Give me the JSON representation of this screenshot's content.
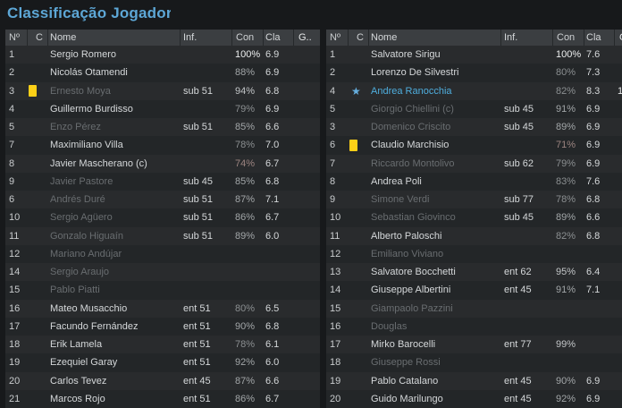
{
  "title": "Classificação Jogadores",
  "columns": [
    "Nº",
    "C",
    "Nome",
    "Inf.",
    "Con",
    "Cla",
    "G.."
  ],
  "colors": {
    "accent": "#4faede",
    "card_yellow": "#fdd017",
    "star_blue": "#66aede",
    "title_blue": "#5da7d6"
  },
  "tables": {
    "left": {
      "rows": [
        {
          "num": "1",
          "icon": "",
          "name": "Sergio Romero",
          "dimmed": false,
          "inf": "",
          "con": "100%",
          "cla": "6.9",
          "g": ""
        },
        {
          "num": "2",
          "icon": "",
          "name": "Nicolás Otamendi",
          "dimmed": false,
          "inf": "",
          "con": "88%",
          "cla": "6.9",
          "g": ""
        },
        {
          "num": "3",
          "icon": "yellow-card",
          "name": "Ernesto Moya",
          "dimmed": true,
          "inf": "sub 51",
          "con": "94%",
          "cla": "6.8",
          "g": ""
        },
        {
          "num": "4",
          "icon": "",
          "name": "Guillermo Burdisso",
          "dimmed": false,
          "inf": "",
          "con": "79%",
          "cla": "6.9",
          "g": ""
        },
        {
          "num": "5",
          "icon": "",
          "name": "Enzo Pérez",
          "dimmed": true,
          "inf": "sub 51",
          "con": "85%",
          "cla": "6.6",
          "g": ""
        },
        {
          "num": "7",
          "icon": "",
          "name": "Maximiliano Villa",
          "dimmed": false,
          "inf": "",
          "con": "78%",
          "cla": "7.0",
          "g": ""
        },
        {
          "num": "8",
          "icon": "",
          "name": "Javier Mascherano (c)",
          "dimmed": false,
          "inf": "",
          "con": "74%",
          "cla": "6.7",
          "g": ""
        },
        {
          "num": "9",
          "icon": "",
          "name": "Javier Pastore",
          "dimmed": true,
          "inf": "sub 45",
          "con": "85%",
          "cla": "6.8",
          "g": ""
        },
        {
          "num": "6",
          "icon": "",
          "name": "Andrés Duré",
          "dimmed": true,
          "inf": "sub 51",
          "con": "87%",
          "cla": "7.1",
          "g": ""
        },
        {
          "num": "10",
          "icon": "",
          "name": "Sergio Agüero",
          "dimmed": true,
          "inf": "sub 51",
          "con": "86%",
          "cla": "6.7",
          "g": ""
        },
        {
          "num": "11",
          "icon": "",
          "name": "Gonzalo Higuaín",
          "dimmed": true,
          "inf": "sub 51",
          "con": "89%",
          "cla": "6.0",
          "g": ""
        },
        {
          "num": "12",
          "icon": "",
          "name": "Mariano Andújar",
          "dimmed": true,
          "inf": "",
          "con": "",
          "cla": "",
          "g": ""
        },
        {
          "num": "14",
          "icon": "",
          "name": "Sergio Araujo",
          "dimmed": true,
          "inf": "",
          "con": "",
          "cla": "",
          "g": ""
        },
        {
          "num": "15",
          "icon": "",
          "name": "Pablo Piatti",
          "dimmed": true,
          "inf": "",
          "con": "",
          "cla": "",
          "g": ""
        },
        {
          "num": "16",
          "icon": "",
          "name": "Mateo Musacchio",
          "dimmed": false,
          "inf": "ent 51",
          "con": "80%",
          "cla": "6.5",
          "g": ""
        },
        {
          "num": "17",
          "icon": "",
          "name": "Facundo Fernández",
          "dimmed": false,
          "inf": "ent 51",
          "con": "90%",
          "cla": "6.8",
          "g": ""
        },
        {
          "num": "18",
          "icon": "",
          "name": "Erik Lamela",
          "dimmed": false,
          "inf": "ent 51",
          "con": "78%",
          "cla": "6.1",
          "g": ""
        },
        {
          "num": "19",
          "icon": "",
          "name": "Ezequiel Garay",
          "dimmed": false,
          "inf": "ent 51",
          "con": "92%",
          "cla": "6.0",
          "g": ""
        },
        {
          "num": "20",
          "icon": "",
          "name": "Carlos Tevez",
          "dimmed": false,
          "inf": "ent 45",
          "con": "87%",
          "cla": "6.6",
          "g": ""
        },
        {
          "num": "21",
          "icon": "",
          "name": "Marcos Rojo",
          "dimmed": false,
          "inf": "ent 51",
          "con": "86%",
          "cla": "6.7",
          "g": ""
        }
      ]
    },
    "right": {
      "rows": [
        {
          "num": "1",
          "icon": "",
          "name": "Salvatore Sirigu",
          "dimmed": false,
          "inf": "",
          "con": "100%",
          "cla": "7.6",
          "g": ""
        },
        {
          "num": "2",
          "icon": "",
          "name": "Lorenzo De Silvestri",
          "dimmed": false,
          "inf": "",
          "con": "80%",
          "cla": "7.3",
          "g": ""
        },
        {
          "num": "4",
          "icon": "star",
          "name": "Andrea Ranocchia",
          "dimmed": false,
          "name_color": "accent",
          "inf": "",
          "con": "82%",
          "cla": "8.3",
          "g": "1"
        },
        {
          "num": "5",
          "icon": "",
          "name": "Giorgio Chiellini (c)",
          "dimmed": true,
          "inf": "sub 45",
          "con": "91%",
          "cla": "6.9",
          "g": ""
        },
        {
          "num": "3",
          "icon": "",
          "name": "Domenico Criscito",
          "dimmed": true,
          "inf": "sub 45",
          "con": "89%",
          "cla": "6.9",
          "g": ""
        },
        {
          "num": "6",
          "icon": "yellow-card",
          "name": "Claudio Marchisio",
          "dimmed": false,
          "inf": "",
          "con": "71%",
          "cla": "6.9",
          "g": ""
        },
        {
          "num": "7",
          "icon": "",
          "name": "Riccardo Montolivo",
          "dimmed": true,
          "inf": "sub 62",
          "con": "79%",
          "cla": "6.9",
          "g": ""
        },
        {
          "num": "8",
          "icon": "",
          "name": "Andrea Poli",
          "dimmed": false,
          "inf": "",
          "con": "83%",
          "cla": "7.6",
          "g": ""
        },
        {
          "num": "9",
          "icon": "",
          "name": "Simone Verdi",
          "dimmed": true,
          "inf": "sub 77",
          "con": "78%",
          "cla": "6.8",
          "g": ""
        },
        {
          "num": "10",
          "icon": "",
          "name": "Sebastian Giovinco",
          "dimmed": true,
          "inf": "sub 45",
          "con": "89%",
          "cla": "6.6",
          "g": ""
        },
        {
          "num": "11",
          "icon": "",
          "name": "Alberto Paloschi",
          "dimmed": false,
          "inf": "",
          "con": "82%",
          "cla": "6.8",
          "g": ""
        },
        {
          "num": "12",
          "icon": "",
          "name": "Emiliano Viviano",
          "dimmed": true,
          "inf": "",
          "con": "",
          "cla": "",
          "g": ""
        },
        {
          "num": "13",
          "icon": "",
          "name": "Salvatore Bocchetti",
          "dimmed": false,
          "inf": "ent 62",
          "con": "95%",
          "cla": "6.4",
          "g": ""
        },
        {
          "num": "14",
          "icon": "",
          "name": "Giuseppe Albertini",
          "dimmed": false,
          "inf": "ent 45",
          "con": "91%",
          "cla": "7.1",
          "g": ""
        },
        {
          "num": "15",
          "icon": "",
          "name": "Giampaolo Pazzini",
          "dimmed": true,
          "inf": "",
          "con": "",
          "cla": "",
          "g": ""
        },
        {
          "num": "16",
          "icon": "",
          "name": "Douglas",
          "dimmed": true,
          "inf": "",
          "con": "",
          "cla": "",
          "g": ""
        },
        {
          "num": "17",
          "icon": "",
          "name": "Mirko Barocelli",
          "dimmed": false,
          "inf": "ent 77",
          "con": "99%",
          "cla": "",
          "g": ""
        },
        {
          "num": "18",
          "icon": "",
          "name": "Giuseppe Rossi",
          "dimmed": true,
          "inf": "",
          "con": "",
          "cla": "",
          "g": ""
        },
        {
          "num": "19",
          "icon": "",
          "name": "Pablo Catalano",
          "dimmed": false,
          "inf": "ent 45",
          "con": "90%",
          "cla": "6.9",
          "g": ""
        },
        {
          "num": "20",
          "icon": "",
          "name": "Guido Marilungo",
          "dimmed": false,
          "inf": "ent 45",
          "con": "92%",
          "cla": "6.9",
          "g": ""
        }
      ]
    }
  }
}
